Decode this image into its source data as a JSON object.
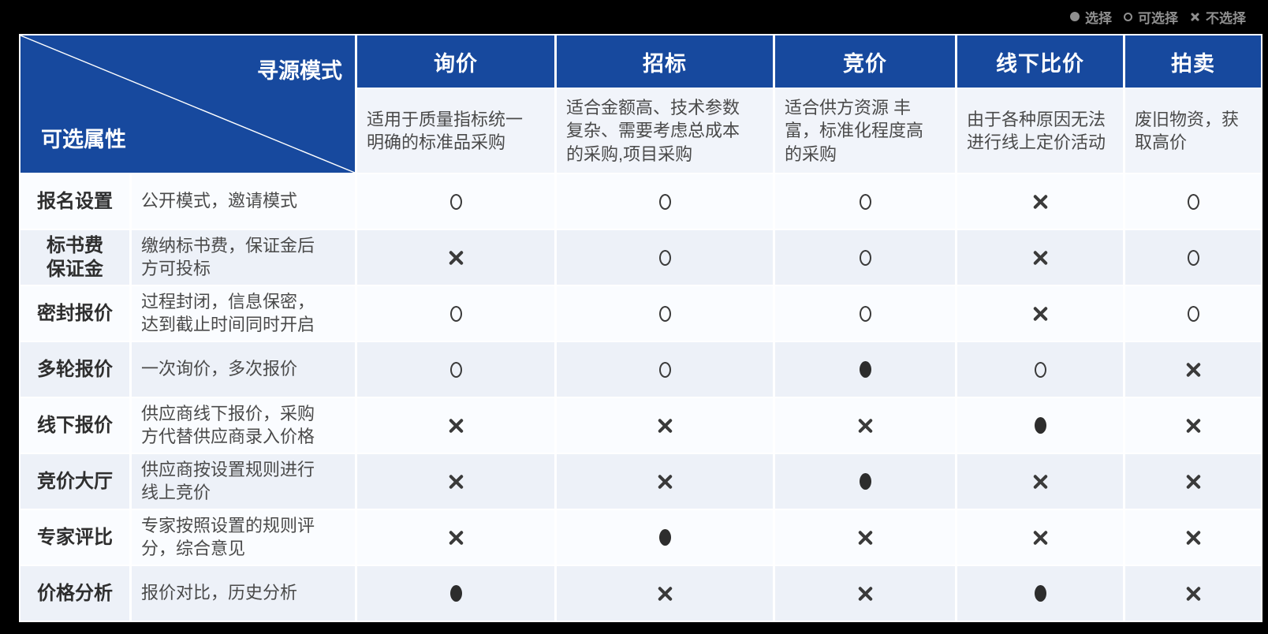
{
  "colors": {
    "header_blue": "#17499e",
    "page_background": "#000000",
    "desc_row": "#f1f4fa",
    "row_base": "#fafcff",
    "row_alt": "#edf1f8",
    "symbol": "#3a3a3a",
    "legend_text": "#8f8f8f"
  },
  "chart_data": {
    "type": "table",
    "column_header": "寻源模式",
    "row_header": "可选属性",
    "legend": [
      {
        "symbol": "dot",
        "label": "选择"
      },
      {
        "symbol": "circle",
        "label": "可选择"
      },
      {
        "symbol": "cross",
        "label": "不选择"
      }
    ],
    "columns": [
      {
        "name": "询价",
        "description": "适用于质量指标统一明确的标准品采购"
      },
      {
        "name": "招标",
        "description": "适合金额高、技术参数复杂、需要考虑总成本的采购,项目采购"
      },
      {
        "name": "竞价",
        "description": "适合供方资源 丰富，标准化程度高的采购"
      },
      {
        "name": "线下比价",
        "description": "由于各种原因无法进行线上定价活动"
      },
      {
        "name": "拍卖",
        "description": "废旧物资，获取高价"
      }
    ],
    "rows": [
      {
        "attribute": "报名设置",
        "description": "公开模式，邀请模式",
        "values": [
          "circle",
          "circle",
          "circle",
          "cross",
          "circle"
        ]
      },
      {
        "attribute": "标书费\n保证金",
        "description": "缴纳标书费，保证金后方可投标",
        "values": [
          "cross",
          "circle",
          "circle",
          "cross",
          "circle"
        ]
      },
      {
        "attribute": "密封报价",
        "description": "过程封闭，信息保密，达到截止时间同时开启",
        "values": [
          "circle",
          "circle",
          "circle",
          "cross",
          "circle"
        ]
      },
      {
        "attribute": "多轮报价",
        "description": "一次询价，多次报价",
        "values": [
          "circle",
          "circle",
          "dot",
          "circle",
          "cross"
        ]
      },
      {
        "attribute": "线下报价",
        "description": "供应商线下报价，采购方代替供应商录入价格",
        "values": [
          "cross",
          "cross",
          "cross",
          "dot",
          "cross"
        ]
      },
      {
        "attribute": "竞价大厅",
        "description": "供应商按设置规则进行线上竞价",
        "values": [
          "cross",
          "cross",
          "dot",
          "cross",
          "cross"
        ]
      },
      {
        "attribute": "专家评比",
        "description": "专家按照设置的规则评分，综合意见",
        "values": [
          "cross",
          "dot",
          "cross",
          "cross",
          "cross"
        ]
      },
      {
        "attribute": "价格分析",
        "description": "报价对比，历史分析",
        "values": [
          "dot",
          "cross",
          "cross",
          "dot",
          "cross"
        ]
      }
    ]
  }
}
